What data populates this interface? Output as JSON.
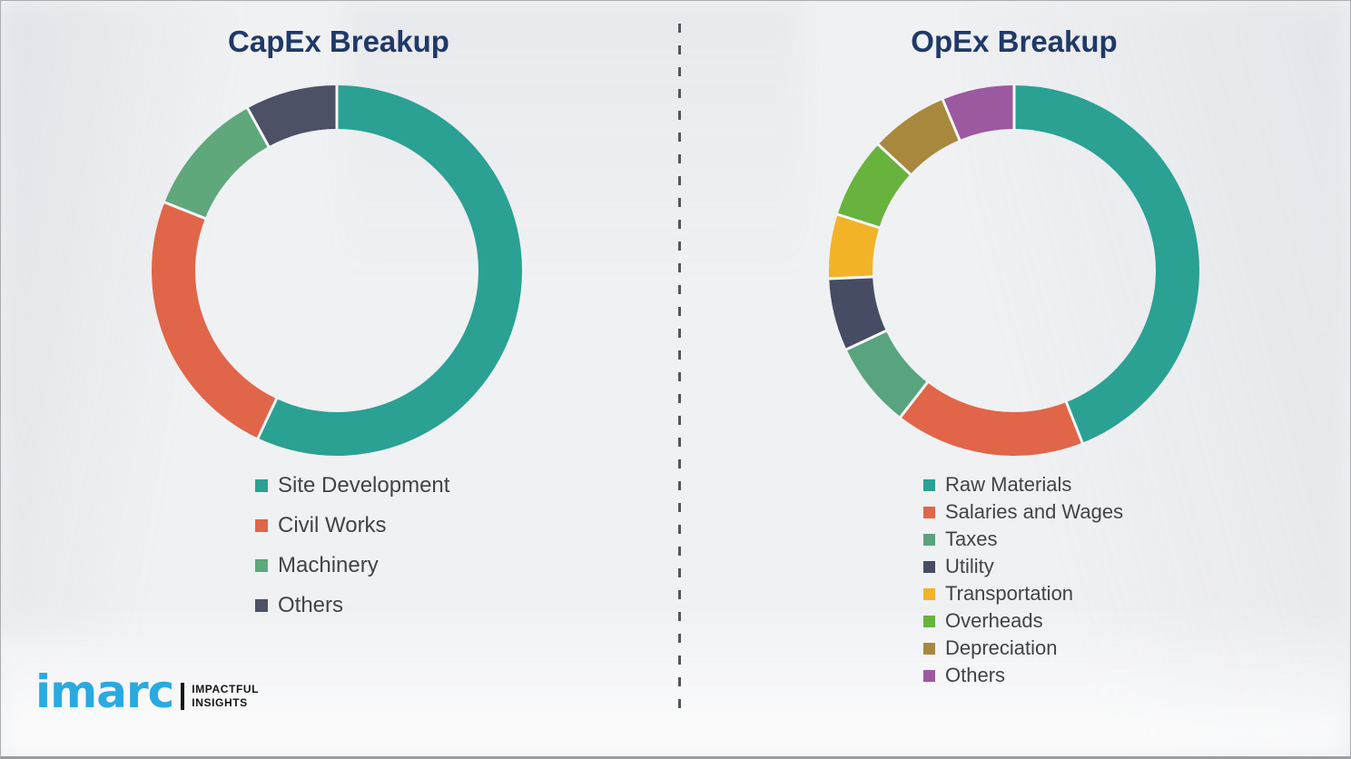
{
  "page": {
    "background_color": "#f0f1f3",
    "divider_style": "vertical dashed line",
    "divider_color": "#53555c"
  },
  "chart_data": [
    {
      "type": "pie",
      "subtype": "donut",
      "title": "CapEx Breakup",
      "title_color": "#1f3968",
      "categories": [
        "Site Development",
        "Civil Works",
        "Machinery",
        "Others"
      ],
      "values": [
        57,
        24,
        11,
        8
      ],
      "colors": [
        "#2aa193",
        "#e16549",
        "#5ea87b",
        "#4d5166"
      ],
      "start_angle_deg": 0,
      "direction": "clockwise",
      "legend_position": "below-left",
      "data_labels": false
    },
    {
      "type": "pie",
      "subtype": "donut",
      "title": "OpEx Breakup",
      "title_color": "#1f3968",
      "categories": [
        "Raw Materials",
        "Salaries and Wages",
        "Taxes",
        "Utility",
        "Transportation",
        "Overheads",
        "Depreciation",
        "Others"
      ],
      "values": [
        44,
        16.5,
        7.5,
        6.3,
        5.6,
        7,
        6.8,
        6.3
      ],
      "colors": [
        "#2aa193",
        "#e16549",
        "#58a47e",
        "#464c63",
        "#f2b327",
        "#67b33e",
        "#a8883c",
        "#9b59a0"
      ],
      "start_angle_deg": 0,
      "direction": "clockwise",
      "legend_position": "below-left",
      "data_labels": false
    }
  ],
  "logo": {
    "brand": "imarc",
    "brand_color": "#29aae1",
    "tagline_line1": "IMPACTFUL",
    "tagline_line2": "INSIGHTS"
  }
}
